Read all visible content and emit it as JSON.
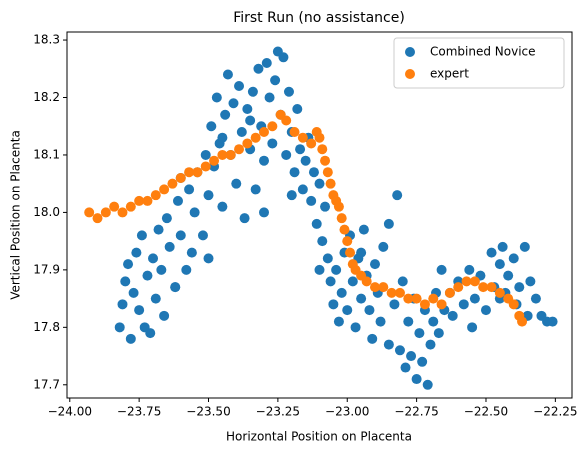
{
  "chart_data": {
    "type": "scatter",
    "title": "First Run (no assistance)",
    "x_label": "Horizontal Position on Placenta",
    "y_label": "Vertical Position on Placenta",
    "xlim": [
      -24.01,
      -22.19
    ],
    "ylim": [
      17.677,
      18.314
    ],
    "xticks": [
      {
        "value": -24.0,
        "label": "−24.00"
      },
      {
        "value": -23.75,
        "label": "−23.75"
      },
      {
        "value": -23.5,
        "label": "−23.50"
      },
      {
        "value": -23.25,
        "label": "−23.25"
      },
      {
        "value": -23.0,
        "label": "−23.00"
      },
      {
        "value": -22.75,
        "label": "−22.75"
      },
      {
        "value": -22.5,
        "label": "−22.50"
      },
      {
        "value": -22.25,
        "label": "−22.25"
      }
    ],
    "yticks": [
      17.7,
      17.8,
      17.9,
      {
        "value": 18.0,
        "label": "18.0"
      },
      18.1,
      18.2,
      18.3
    ],
    "legend": "upper right",
    "series": [
      {
        "name": "Combined Novice",
        "color": "#1f77b4",
        "x": [
          -23.82,
          -23.81,
          -23.8,
          -23.79,
          -23.78,
          -23.77,
          -23.76,
          -23.75,
          -23.74,
          -23.73,
          -23.72,
          -23.71,
          -23.7,
          -23.69,
          -23.68,
          -23.67,
          -23.66,
          -23.65,
          -23.64,
          -23.62,
          -23.61,
          -23.6,
          -23.58,
          -23.57,
          -23.56,
          -23.55,
          -23.54,
          -23.52,
          -23.51,
          -23.5,
          -23.49,
          -23.48,
          -23.47,
          -23.46,
          -23.45,
          -23.44,
          -23.43,
          -23.42,
          -23.41,
          -23.4,
          -23.39,
          -23.38,
          -23.37,
          -23.36,
          -23.35,
          -23.34,
          -23.33,
          -23.32,
          -23.31,
          -23.3,
          -23.29,
          -23.28,
          -23.27,
          -23.26,
          -23.25,
          -23.24,
          -23.23,
          -23.22,
          -23.21,
          -23.2,
          -23.19,
          -23.18,
          -23.17,
          -23.16,
          -23.15,
          -23.14,
          -23.13,
          -23.12,
          -23.11,
          -23.1,
          -23.09,
          -23.08,
          -23.07,
          -23.06,
          -23.05,
          -23.04,
          -23.03,
          -23.02,
          -23.01,
          -23.0,
          -22.99,
          -22.98,
          -22.97,
          -22.96,
          -22.95,
          -22.94,
          -22.93,
          -22.92,
          -22.91,
          -22.9,
          -22.89,
          -22.88,
          -22.87,
          -22.85,
          -22.83,
          -22.82,
          -22.81,
          -22.8,
          -22.79,
          -22.78,
          -22.77,
          -22.76,
          -22.75,
          -22.74,
          -22.73,
          -22.72,
          -22.71,
          -22.7,
          -22.69,
          -22.68,
          -22.67,
          -22.66,
          -22.65,
          -22.63,
          -22.62,
          -22.6,
          -22.58,
          -22.56,
          -22.54,
          -22.52,
          -22.5,
          -22.48,
          -22.47,
          -22.45,
          -22.44,
          -22.43,
          -22.42,
          -22.4,
          -22.39,
          -22.38,
          -22.36,
          -22.35,
          -22.34,
          -22.32,
          -22.3,
          -22.28,
          -22.26,
          -23.6,
          -23.62,
          -23.5,
          -23.45,
          -23.35,
          -23.3,
          -23.2,
          -23.1,
          -22.95,
          -22.85,
          -22.55,
          -22.45
        ],
        "y": [
          17.8,
          17.84,
          17.88,
          17.91,
          17.78,
          17.86,
          17.93,
          17.83,
          17.96,
          17.8,
          17.89,
          17.79,
          17.92,
          17.85,
          17.97,
          17.9,
          17.82,
          17.99,
          17.94,
          17.87,
          18.02,
          17.96,
          17.9,
          18.04,
          17.93,
          18.0,
          18.07,
          17.96,
          18.1,
          18.03,
          18.15,
          18.08,
          18.2,
          18.12,
          18.01,
          18.17,
          18.24,
          18.1,
          18.19,
          18.05,
          18.22,
          18.14,
          17.99,
          18.18,
          18.11,
          18.21,
          18.04,
          18.25,
          18.15,
          18.09,
          18.26,
          18.2,
          18.12,
          18.23,
          18.28,
          18.17,
          18.27,
          18.1,
          18.21,
          18.14,
          18.07,
          18.18,
          18.11,
          18.04,
          18.09,
          18.13,
          18.02,
          18.07,
          17.98,
          18.05,
          17.95,
          18.01,
          17.92,
          17.88,
          17.84,
          17.9,
          17.81,
          17.86,
          17.93,
          17.83,
          17.96,
          17.88,
          17.8,
          17.92,
          17.85,
          17.97,
          17.89,
          17.83,
          17.78,
          17.91,
          17.86,
          17.81,
          17.94,
          17.77,
          17.84,
          18.03,
          17.76,
          17.88,
          17.73,
          17.81,
          17.75,
          17.85,
          17.71,
          17.79,
          17.74,
          17.83,
          17.7,
          17.77,
          17.81,
          17.86,
          17.79,
          17.9,
          17.83,
          17.86,
          17.82,
          17.88,
          17.84,
          17.9,
          17.85,
          17.89,
          17.83,
          17.93,
          17.87,
          17.91,
          17.94,
          17.86,
          17.89,
          17.92,
          17.84,
          17.87,
          17.94,
          17.82,
          17.88,
          17.85,
          17.82,
          17.81,
          17.81,
          18.06,
          17.87,
          17.92,
          18.13,
          18.16,
          18.0,
          18.03,
          17.9,
          17.93,
          17.98,
          17.8,
          17.85
        ]
      },
      {
        "name": "expert",
        "color": "#ff7f0e",
        "x": [
          -23.93,
          -23.9,
          -23.87,
          -23.84,
          -23.81,
          -23.78,
          -23.75,
          -23.72,
          -23.69,
          -23.66,
          -23.63,
          -23.6,
          -23.57,
          -23.54,
          -23.51,
          -23.48,
          -23.45,
          -23.42,
          -23.39,
          -23.36,
          -23.33,
          -23.3,
          -23.27,
          -23.24,
          -23.22,
          -23.19,
          -23.16,
          -23.13,
          -23.11,
          -23.1,
          -23.09,
          -23.08,
          -23.07,
          -23.06,
          -23.05,
          -23.04,
          -23.03,
          -23.02,
          -23.01,
          -23.0,
          -22.99,
          -22.98,
          -22.97,
          -22.95,
          -22.93,
          -22.9,
          -22.87,
          -22.84,
          -22.81,
          -22.78,
          -22.75,
          -22.72,
          -22.69,
          -22.66,
          -22.63,
          -22.6,
          -22.57,
          -22.54,
          -22.51,
          -22.48,
          -22.45,
          -22.42,
          -22.4,
          -22.38,
          -22.37
        ],
        "y": [
          18.0,
          17.99,
          18.0,
          18.01,
          18.0,
          18.01,
          18.02,
          18.02,
          18.03,
          18.04,
          18.05,
          18.06,
          18.07,
          18.07,
          18.08,
          18.09,
          18.1,
          18.1,
          18.11,
          18.12,
          18.13,
          18.14,
          18.15,
          18.17,
          18.16,
          18.14,
          18.13,
          18.12,
          18.14,
          18.13,
          18.11,
          18.09,
          18.07,
          18.05,
          18.03,
          18.02,
          18.01,
          17.99,
          17.97,
          17.95,
          17.93,
          17.91,
          17.9,
          17.89,
          17.88,
          17.87,
          17.87,
          17.86,
          17.86,
          17.85,
          17.85,
          17.84,
          17.85,
          17.84,
          17.86,
          17.87,
          17.88,
          17.88,
          17.87,
          17.87,
          17.86,
          17.85,
          17.84,
          17.82,
          17.81
        ]
      }
    ]
  }
}
